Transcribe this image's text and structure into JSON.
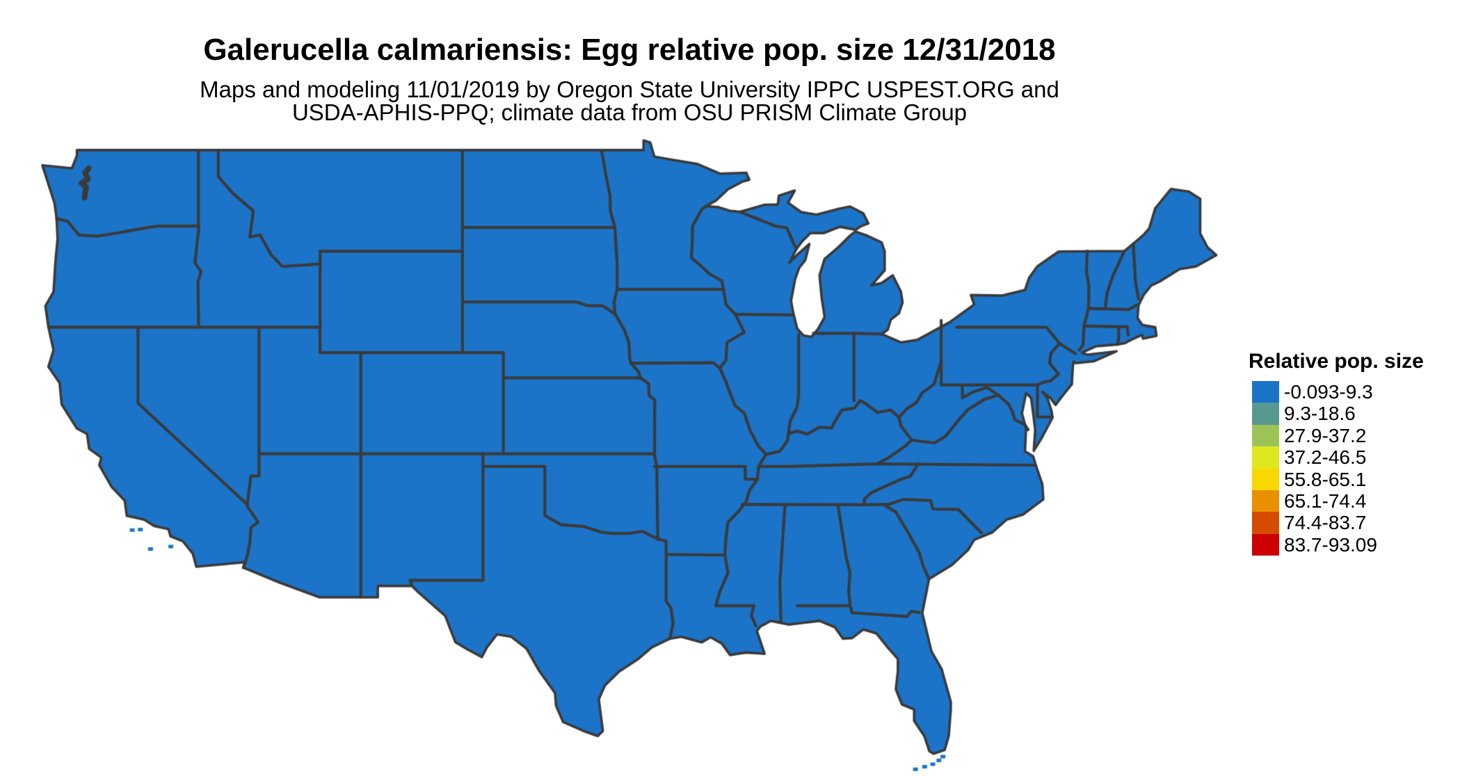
{
  "page": {
    "background": "#ffffff"
  },
  "header": {
    "title": "Galerucella calmariensis: Egg relative pop. size 12/31/2018",
    "subtitle_line1": "Maps and modeling 11/01/2019 by Oregon State University IPPC USPEST.ORG and",
    "subtitle_line2": "USDA-APHIS-PPQ; climate data from OSU PRISM Climate Group"
  },
  "legend": {
    "title": "Relative pop. size",
    "entries": [
      {
        "label": "-0.093-9.3",
        "color": "#1b74c8"
      },
      {
        "label": "9.3-18.6",
        "color": "#58998f"
      },
      {
        "label": "27.9-37.2",
        "color": "#9cc356"
      },
      {
        "label": "37.2-46.5",
        "color": "#dfe81f"
      },
      {
        "label": "55.8-65.1",
        "color": "#f8d800"
      },
      {
        "label": "65.1-74.4",
        "color": "#e99000"
      },
      {
        "label": "74.4-83.7",
        "color": "#d54c00"
      },
      {
        "label": "83.7-93.09",
        "color": "#cc0000"
      }
    ]
  },
  "map": {
    "region": "Contiguous United States",
    "type": "raster suitability heatmap with state boundaries",
    "border_color": "#3a3a3a",
    "water_color": "#ffffff",
    "base_color": "#1b74c8"
  },
  "chart_data": {
    "type": "heatmap",
    "title": "Galerucella calmariensis: Egg relative pop. size 12/31/2018",
    "legend_title": "Relative pop. size",
    "region": "contiguous United States",
    "bins": [
      "-0.093-9.3",
      "9.3-18.6",
      "27.9-37.2",
      "37.2-46.5",
      "55.8-65.1",
      "65.1-74.4",
      "74.4-83.7",
      "83.7-93.09"
    ],
    "bin_colors": [
      "#1b74c8",
      "#58998f",
      "#9cc356",
      "#dfe81f",
      "#f8d800",
      "#e99000",
      "#d54c00",
      "#cc0000"
    ],
    "value_range": [
      -0.093,
      93.09
    ]
  }
}
